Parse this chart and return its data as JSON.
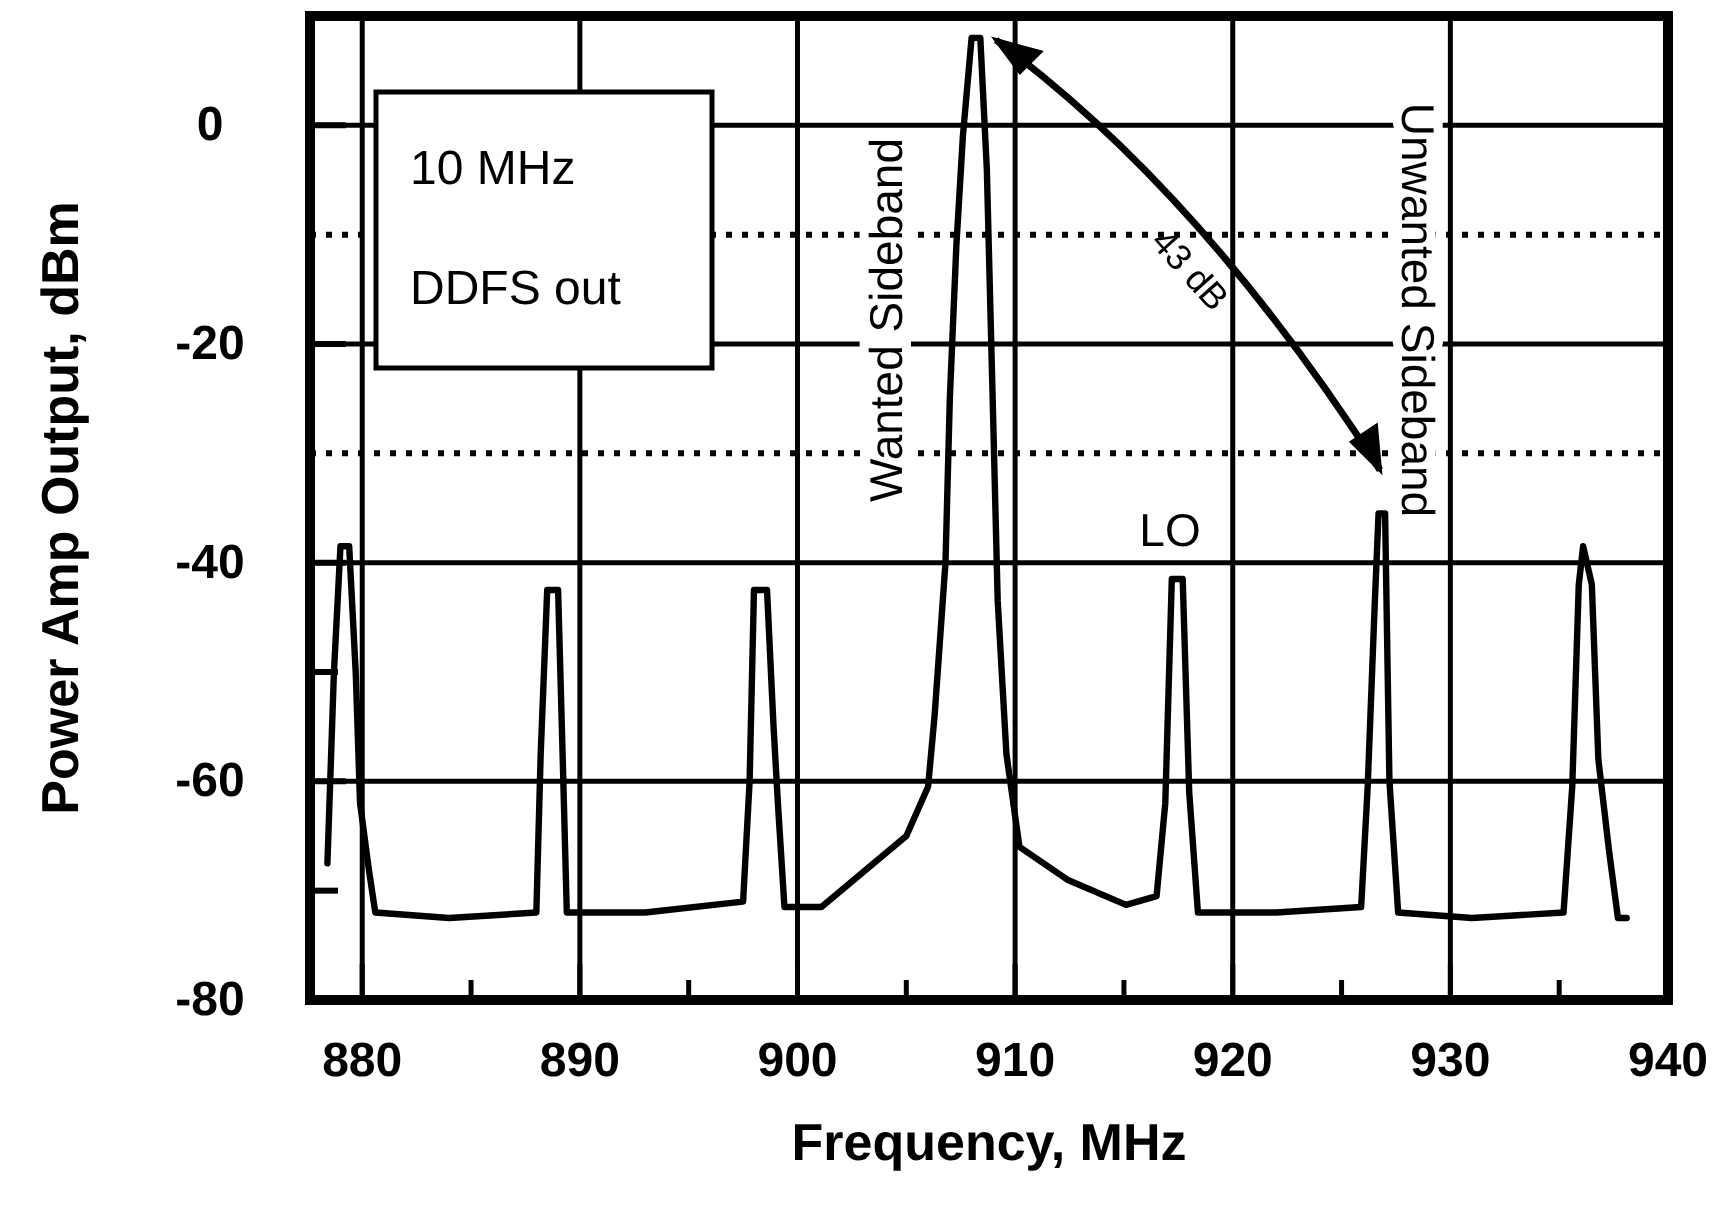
{
  "chart_data": {
    "type": "line",
    "xlabel": "Frequency, MHz",
    "ylabel": "Power Amp Output, dBm",
    "xlim": [
      877.6,
      940
    ],
    "ylim": [
      -80,
      10
    ],
    "xticks": [
      880,
      {
        "value": 885,
        "label": null
      },
      890,
      {
        "value": 895,
        "label": null
      },
      900,
      {
        "value": 905,
        "label": null
      },
      910,
      {
        "value": 915,
        "label": null
      },
      920,
      {
        "value": 925,
        "label": null
      },
      930,
      {
        "value": 935,
        "label": null
      },
      940
    ],
    "yticks": [
      -80,
      {
        "value": -70,
        "label": null
      },
      -60,
      {
        "value": -50,
        "label": null
      },
      -40,
      -20,
      0
    ],
    "grid": true,
    "marker": "none",
    "line_style": "solid",
    "ref_lines": [
      {
        "axis": "y",
        "value": -10,
        "label": null,
        "line_style": "dotted",
        "color": "#000000"
      },
      {
        "axis": "y",
        "value": -30,
        "label": null,
        "line_style": "dotted",
        "color": "#000000"
      }
    ],
    "annotations": [
      "10 MHz\nDDFS out",
      "Wanted Sideband",
      "Unwanted Sideband",
      "LO",
      "43 dB"
    ],
    "x": [
      878.4,
      878.7,
      879.0,
      879.4,
      879.7,
      879.9,
      880.3,
      880.6,
      884,
      888.0,
      888.2,
      888.5,
      889.0,
      889.2,
      889.4,
      893,
      897.5,
      897.8,
      898.0,
      898.6,
      898.9,
      899.1,
      899.4,
      901.1,
      903.2,
      905.0,
      906.0,
      906.3,
      906.8,
      907.0,
      907.3,
      907.6,
      908.0,
      908.4,
      908.7,
      909.0,
      909.2,
      909.6,
      910.2,
      912.4,
      915.1,
      916.5,
      916.9,
      917.2,
      917.7,
      918.0,
      918.4,
      922,
      925.9,
      926.2,
      926.5,
      926.7,
      927.0,
      927.2,
      927.6,
      931,
      935.2,
      935.6,
      935.9,
      936.1,
      936.5,
      936.8,
      937.3,
      937.7,
      938.1
    ],
    "series": [
      {
        "color": "#000000",
        "values": [
          -67.5,
          -50,
          -38.5,
          -38.5,
          -50,
          -62,
          -68,
          -72,
          -72.5,
          -72,
          -57.5,
          -42.5,
          -42.5,
          -57,
          -72,
          -72,
          -71,
          -60,
          -42.5,
          -42.5,
          -55,
          -62,
          -71.5,
          -71.5,
          -68,
          -65,
          -60.5,
          -54,
          -40,
          -25,
          -11,
          -1,
          8,
          8,
          -4,
          -27.5,
          -43.5,
          -57.5,
          -66,
          -69,
          -71.3,
          -70.5,
          -62,
          -41.5,
          -41.5,
          -61,
          -72,
          -72,
          -71.5,
          -60.5,
          -45,
          -35.5,
          -35.5,
          -60,
          -72,
          -72.5,
          -72,
          -60.5,
          -42,
          -38.5,
          -42,
          -58,
          -66.5,
          -72.5,
          -72.5
        ]
      }
    ]
  }
}
